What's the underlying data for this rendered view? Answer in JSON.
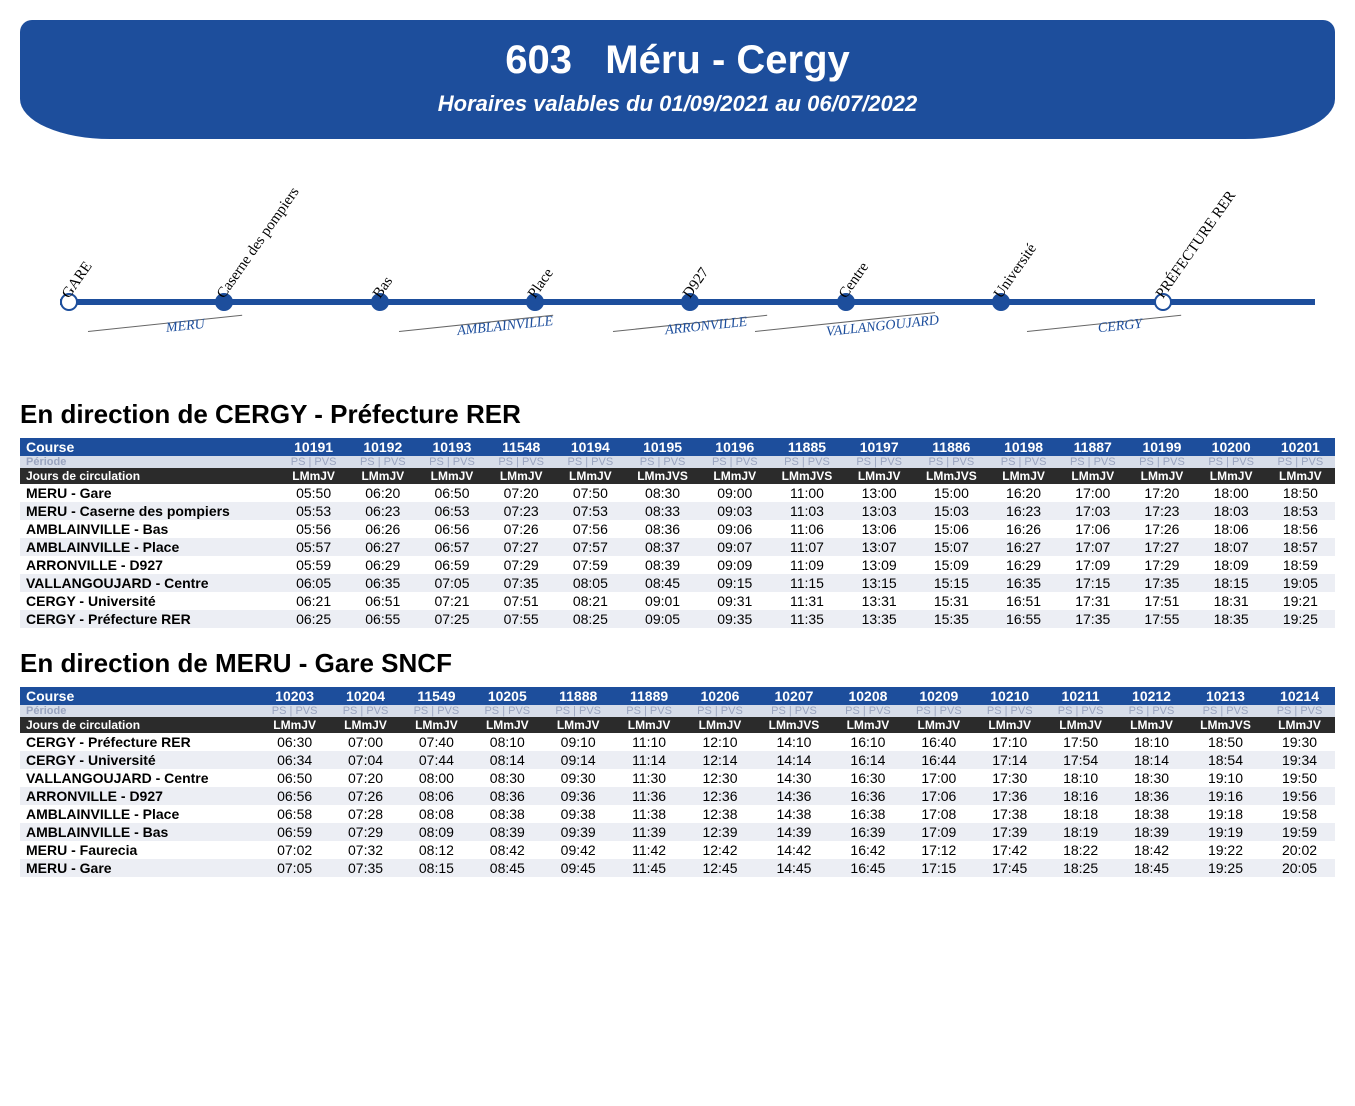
{
  "banner": {
    "line_number": "603",
    "route_name": "Méru - Cergy",
    "validity": "Horaires valables du 01/09/2021 au 06/07/2022"
  },
  "route_diagram": {
    "type": "route-line",
    "line_color": "#1d4e9c",
    "segment_label_color": "#1d4e9c",
    "stops": [
      {
        "label": "GARE",
        "pos_pct": 3.0,
        "hollow": true
      },
      {
        "label": "Caserne des pompiers",
        "pos_pct": 15.0,
        "hollow": false
      },
      {
        "label": "Bas",
        "pos_pct": 27.0,
        "hollow": false
      },
      {
        "label": "Place",
        "pos_pct": 39.0,
        "hollow": false
      },
      {
        "label": "D927",
        "pos_pct": 51.0,
        "hollow": false
      },
      {
        "label": "Centre",
        "pos_pct": 63.0,
        "hollow": false
      },
      {
        "label": "Université",
        "pos_pct": 75.0,
        "hollow": false
      },
      {
        "label": "PRÉFECTURE RER",
        "pos_pct": 87.5,
        "hollow": true
      }
    ],
    "segments": [
      {
        "label": "MERU",
        "pos_pct": 10.5,
        "ul_left_pct": 4.5,
        "ul_width_pct": 12
      },
      {
        "label": "AMBLAINVILLE",
        "pos_pct": 33.0,
        "ul_left_pct": 28.5,
        "ul_width_pct": 12
      },
      {
        "label": "ARRONVILLE",
        "pos_pct": 49.0,
        "ul_left_pct": 45.0,
        "ul_width_pct": 12
      },
      {
        "label": "VALLANGOUJARD",
        "pos_pct": 61.5,
        "ul_left_pct": 56.0,
        "ul_width_pct": 14
      },
      {
        "label": "CERGY",
        "pos_pct": 82.5,
        "ul_left_pct": 77.0,
        "ul_width_pct": 12
      }
    ]
  },
  "timetable_labels": {
    "course": "Course",
    "periode": "Période",
    "periode_cell": "PS | PVS",
    "jours": "Jours de circulation"
  },
  "cergy": {
    "title": "En direction de CERGY - Préfecture RER",
    "courses": [
      "10191",
      "10192",
      "10193",
      "11548",
      "10194",
      "10195",
      "10196",
      "11885",
      "10197",
      "11886",
      "10198",
      "11887",
      "10199",
      "10200",
      "10201"
    ],
    "jours": [
      "LMmJV",
      "LMmJV",
      "LMmJV",
      "LMmJV",
      "LMmJV",
      "LMmJVS",
      "LMmJV",
      "LMmJVS",
      "LMmJV",
      "LMmJVS",
      "LMmJV",
      "LMmJV",
      "LMmJV",
      "LMmJV",
      "LMmJV"
    ],
    "stops": [
      {
        "name": "MERU - Gare",
        "times": [
          "05:50",
          "06:20",
          "06:50",
          "07:20",
          "07:50",
          "08:30",
          "09:00",
          "11:00",
          "13:00",
          "15:00",
          "16:20",
          "17:00",
          "17:20",
          "18:00",
          "18:50"
        ]
      },
      {
        "name": "MERU - Caserne des pompiers",
        "times": [
          "05:53",
          "06:23",
          "06:53",
          "07:23",
          "07:53",
          "08:33",
          "09:03",
          "11:03",
          "13:03",
          "15:03",
          "16:23",
          "17:03",
          "17:23",
          "18:03",
          "18:53"
        ]
      },
      {
        "name": "AMBLAINVILLE - Bas",
        "times": [
          "05:56",
          "06:26",
          "06:56",
          "07:26",
          "07:56",
          "08:36",
          "09:06",
          "11:06",
          "13:06",
          "15:06",
          "16:26",
          "17:06",
          "17:26",
          "18:06",
          "18:56"
        ]
      },
      {
        "name": "AMBLAINVILLE - Place",
        "times": [
          "05:57",
          "06:27",
          "06:57",
          "07:27",
          "07:57",
          "08:37",
          "09:07",
          "11:07",
          "13:07",
          "15:07",
          "16:27",
          "17:07",
          "17:27",
          "18:07",
          "18:57"
        ]
      },
      {
        "name": "ARRONVILLE - D927",
        "times": [
          "05:59",
          "06:29",
          "06:59",
          "07:29",
          "07:59",
          "08:39",
          "09:09",
          "11:09",
          "13:09",
          "15:09",
          "16:29",
          "17:09",
          "17:29",
          "18:09",
          "18:59"
        ]
      },
      {
        "name": "VALLANGOUJARD - Centre",
        "times": [
          "06:05",
          "06:35",
          "07:05",
          "07:35",
          "08:05",
          "08:45",
          "09:15",
          "11:15",
          "13:15",
          "15:15",
          "16:35",
          "17:15",
          "17:35",
          "18:15",
          "19:05"
        ]
      },
      {
        "name": "CERGY - Université",
        "times": [
          "06:21",
          "06:51",
          "07:21",
          "07:51",
          "08:21",
          "09:01",
          "09:31",
          "11:31",
          "13:31",
          "15:31",
          "16:51",
          "17:31",
          "17:51",
          "18:31",
          "19:21"
        ]
      },
      {
        "name": "CERGY - Préfecture RER",
        "times": [
          "06:25",
          "06:55",
          "07:25",
          "07:55",
          "08:25",
          "09:05",
          "09:35",
          "11:35",
          "13:35",
          "15:35",
          "16:55",
          "17:35",
          "17:55",
          "18:35",
          "19:25"
        ]
      }
    ]
  },
  "meru": {
    "title": "En direction de MERU - Gare SNCF",
    "courses": [
      "10203",
      "10204",
      "11549",
      "10205",
      "11888",
      "11889",
      "10206",
      "10207",
      "10208",
      "10209",
      "10210",
      "10211",
      "10212",
      "10213",
      "10214"
    ],
    "jours": [
      "LMmJV",
      "LMmJV",
      "LMmJV",
      "LMmJV",
      "LMmJV",
      "LMmJV",
      "LMmJV",
      "LMmJVS",
      "LMmJV",
      "LMmJV",
      "LMmJV",
      "LMmJV",
      "LMmJV",
      "LMmJVS",
      "LMmJV"
    ],
    "stops": [
      {
        "name": "CERGY - Préfecture RER",
        "times": [
          "06:30",
          "07:00",
          "07:40",
          "08:10",
          "09:10",
          "11:10",
          "12:10",
          "14:10",
          "16:10",
          "16:40",
          "17:10",
          "17:50",
          "18:10",
          "18:50",
          "19:30"
        ]
      },
      {
        "name": "CERGY - Université",
        "times": [
          "06:34",
          "07:04",
          "07:44",
          "08:14",
          "09:14",
          "11:14",
          "12:14",
          "14:14",
          "16:14",
          "16:44",
          "17:14",
          "17:54",
          "18:14",
          "18:54",
          "19:34"
        ]
      },
      {
        "name": "VALLANGOUJARD - Centre",
        "times": [
          "06:50",
          "07:20",
          "08:00",
          "08:30",
          "09:30",
          "11:30",
          "12:30",
          "14:30",
          "16:30",
          "17:00",
          "17:30",
          "18:10",
          "18:30",
          "19:10",
          "19:50"
        ]
      },
      {
        "name": "ARRONVILLE - D927",
        "times": [
          "06:56",
          "07:26",
          "08:06",
          "08:36",
          "09:36",
          "11:36",
          "12:36",
          "14:36",
          "16:36",
          "17:06",
          "17:36",
          "18:16",
          "18:36",
          "19:16",
          "19:56"
        ]
      },
      {
        "name": "AMBLAINVILLE - Place",
        "times": [
          "06:58",
          "07:28",
          "08:08",
          "08:38",
          "09:38",
          "11:38",
          "12:38",
          "14:38",
          "16:38",
          "17:08",
          "17:38",
          "18:18",
          "18:38",
          "19:18",
          "19:58"
        ]
      },
      {
        "name": "AMBLAINVILLE - Bas",
        "times": [
          "06:59",
          "07:29",
          "08:09",
          "08:39",
          "09:39",
          "11:39",
          "12:39",
          "14:39",
          "16:39",
          "17:09",
          "17:39",
          "18:19",
          "18:39",
          "19:19",
          "19:59"
        ]
      },
      {
        "name": "MERU - Faurecia",
        "times": [
          "07:02",
          "07:32",
          "08:12",
          "08:42",
          "09:42",
          "11:42",
          "12:42",
          "14:42",
          "16:42",
          "17:12",
          "17:42",
          "18:22",
          "18:42",
          "19:22",
          "20:02"
        ]
      },
      {
        "name": "MERU - Gare",
        "times": [
          "07:05",
          "07:35",
          "08:15",
          "08:45",
          "09:45",
          "11:45",
          "12:45",
          "14:45",
          "16:45",
          "17:15",
          "17:45",
          "18:25",
          "18:45",
          "19:25",
          "20:05"
        ]
      }
    ]
  }
}
